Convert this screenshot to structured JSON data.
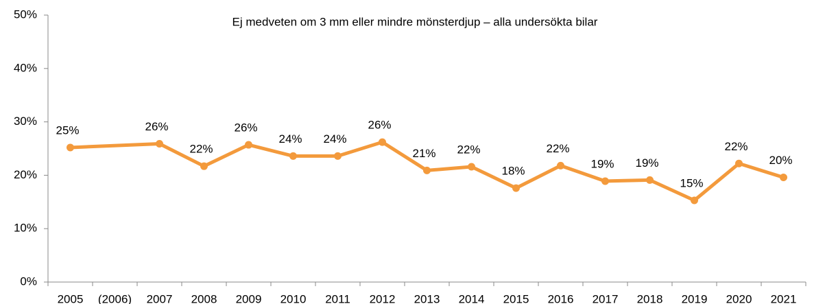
{
  "chart_data": {
    "type": "line",
    "title": "Ej medveten om 3 mm eller mindre mönsterdjup – alla undersökta bilar",
    "categories": [
      "2005",
      "(2006)",
      "2007",
      "2008",
      "2009",
      "2010",
      "2011",
      "2012",
      "2013",
      "2014",
      "2015",
      "2016",
      "2017",
      "2018",
      "2019",
      "2020",
      "2021"
    ],
    "series": [
      {
        "name": "Ej medveten",
        "color": "#f39a3c",
        "values": [
          25.2,
          null,
          25.9,
          21.7,
          25.7,
          23.6,
          23.6,
          26.2,
          20.9,
          21.6,
          17.6,
          21.8,
          18.9,
          19.1,
          15.3,
          22.2,
          19.6
        ],
        "value_labels": [
          "25%",
          null,
          "26%",
          "22%",
          "26%",
          "24%",
          "24%",
          "26%",
          "21%",
          "22%",
          "18%",
          "22%",
          "19%",
          "19%",
          "15%",
          "22%",
          "20%"
        ]
      }
    ],
    "connect_gaps": true,
    "ylim": [
      0,
      50
    ],
    "yticks": [
      {
        "value": 0,
        "label": "0%"
      },
      {
        "value": 10,
        "label": "10%"
      },
      {
        "value": 20,
        "label": "20%"
      },
      {
        "value": 30,
        "label": "30%"
      },
      {
        "value": 40,
        "label": "40%"
      },
      {
        "value": 50,
        "label": "50%"
      }
    ]
  }
}
